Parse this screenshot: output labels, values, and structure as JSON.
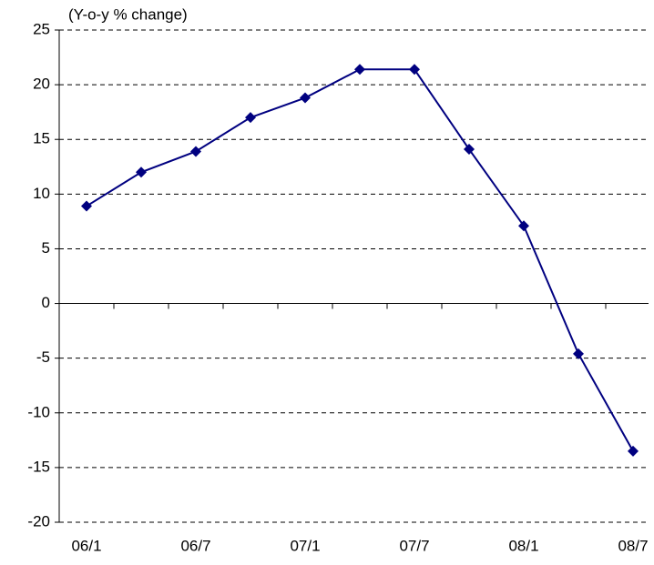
{
  "chart_data": {
    "type": "line",
    "y_label": "(Y-o-y % change)",
    "categories": [
      "06/1",
      null,
      "06/7",
      null,
      "07/1",
      null,
      "07/7",
      null,
      "08/1",
      null,
      "08/7"
    ],
    "series": [
      {
        "name": null,
        "color": "#000080",
        "values": [
          8.9,
          12.0,
          13.9,
          17.0,
          18.8,
          21.4,
          21.4,
          14.1,
          7.1,
          -4.6,
          -13.5
        ]
      }
    ],
    "ylim": [
      -20,
      25
    ],
    "yticks": [
      -20,
      -15,
      -10,
      -5,
      0,
      5,
      10,
      15,
      20,
      25
    ],
    "grid": true
  }
}
